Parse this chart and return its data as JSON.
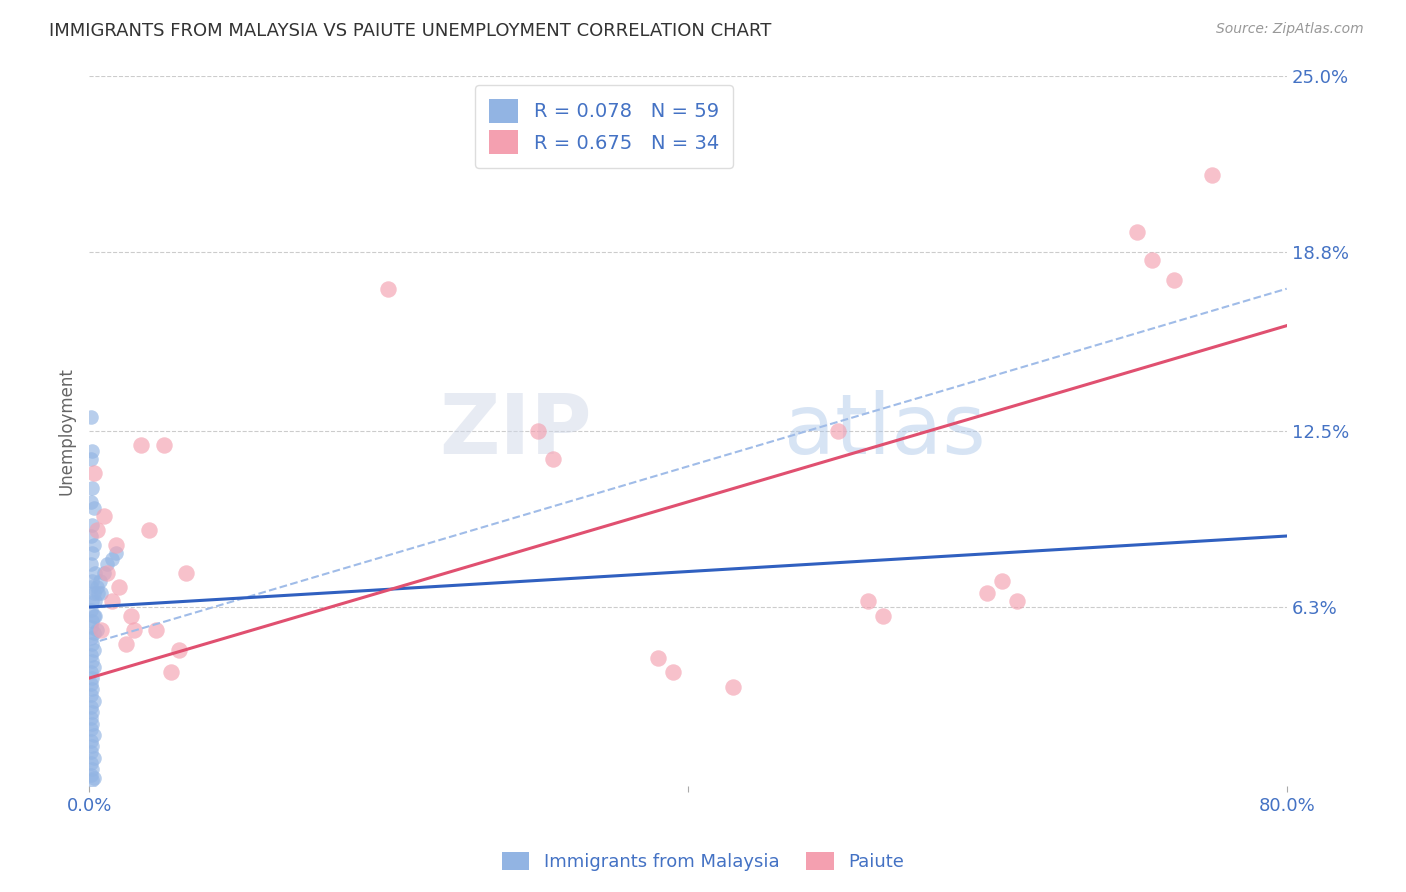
{
  "title": "IMMIGRANTS FROM MALAYSIA VS PAIUTE UNEMPLOYMENT CORRELATION CHART",
  "source": "Source: ZipAtlas.com",
  "xlabel_blue": "Immigrants from Malaysia",
  "xlabel_pink": "Paiute",
  "ylabel": "Unemployment",
  "xlim": [
    0.0,
    0.8
  ],
  "ylim": [
    0.0,
    0.25
  ],
  "y_tick_labels": [
    "6.3%",
    "12.5%",
    "18.8%",
    "25.0%"
  ],
  "y_ticks": [
    0.063,
    0.125,
    0.188,
    0.25
  ],
  "blue_R": 0.078,
  "blue_N": 59,
  "pink_R": 0.675,
  "pink_N": 34,
  "blue_color": "#92b4e3",
  "pink_color": "#f4a0b0",
  "blue_line_color": "#3060c0",
  "pink_line_color": "#e05070",
  "dashed_line_color": "#a0bce8",
  "grid_color": "#cccccc",
  "title_color": "#333333",
  "axis_label_color": "#4472c4",
  "blue_line": {
    "x0": 0.0,
    "y0": 0.063,
    "x1": 0.8,
    "y1": 0.088
  },
  "pink_line": {
    "x0": 0.0,
    "y0": 0.038,
    "x1": 0.8,
    "y1": 0.162
  },
  "dashed_line": {
    "x0": 0.0,
    "y0": 0.05,
    "x1": 0.8,
    "y1": 0.175
  },
  "blue_scatter": [
    [
      0.001,
      0.13
    ],
    [
      0.002,
      0.118
    ],
    [
      0.001,
      0.115
    ],
    [
      0.002,
      0.105
    ],
    [
      0.001,
      0.1
    ],
    [
      0.003,
      0.098
    ],
    [
      0.002,
      0.092
    ],
    [
      0.001,
      0.088
    ],
    [
      0.003,
      0.085
    ],
    [
      0.002,
      0.082
    ],
    [
      0.001,
      0.078
    ],
    [
      0.004,
      0.075
    ],
    [
      0.002,
      0.072
    ],
    [
      0.001,
      0.07
    ],
    [
      0.003,
      0.068
    ],
    [
      0.002,
      0.065
    ],
    [
      0.001,
      0.062
    ],
    [
      0.003,
      0.06
    ],
    [
      0.002,
      0.058
    ],
    [
      0.001,
      0.056
    ],
    [
      0.003,
      0.054
    ],
    [
      0.001,
      0.052
    ],
    [
      0.002,
      0.05
    ],
    [
      0.003,
      0.048
    ],
    [
      0.001,
      0.046
    ],
    [
      0.002,
      0.044
    ],
    [
      0.003,
      0.042
    ],
    [
      0.001,
      0.04
    ],
    [
      0.002,
      0.038
    ],
    [
      0.001,
      0.036
    ],
    [
      0.002,
      0.034
    ],
    [
      0.001,
      0.032
    ],
    [
      0.003,
      0.03
    ],
    [
      0.001,
      0.028
    ],
    [
      0.002,
      0.026
    ],
    [
      0.001,
      0.024
    ],
    [
      0.002,
      0.022
    ],
    [
      0.001,
      0.02
    ],
    [
      0.003,
      0.018
    ],
    [
      0.001,
      0.016
    ],
    [
      0.002,
      0.014
    ],
    [
      0.001,
      0.012
    ],
    [
      0.003,
      0.01
    ],
    [
      0.001,
      0.008
    ],
    [
      0.002,
      0.006
    ],
    [
      0.001,
      0.004
    ],
    [
      0.002,
      0.002
    ],
    [
      0.003,
      0.003
    ],
    [
      0.004,
      0.065
    ],
    [
      0.005,
      0.07
    ],
    [
      0.006,
      0.068
    ],
    [
      0.004,
      0.06
    ],
    [
      0.005,
      0.055
    ],
    [
      0.007,
      0.072
    ],
    [
      0.008,
      0.068
    ],
    [
      0.01,
      0.075
    ],
    [
      0.012,
      0.078
    ],
    [
      0.015,
      0.08
    ],
    [
      0.018,
      0.082
    ]
  ],
  "pink_scatter": [
    [
      0.003,
      0.11
    ],
    [
      0.005,
      0.09
    ],
    [
      0.008,
      0.055
    ],
    [
      0.01,
      0.095
    ],
    [
      0.012,
      0.075
    ],
    [
      0.015,
      0.065
    ],
    [
      0.018,
      0.085
    ],
    [
      0.02,
      0.07
    ],
    [
      0.025,
      0.05
    ],
    [
      0.028,
      0.06
    ],
    [
      0.03,
      0.055
    ],
    [
      0.035,
      0.12
    ],
    [
      0.04,
      0.09
    ],
    [
      0.045,
      0.055
    ],
    [
      0.05,
      0.12
    ],
    [
      0.055,
      0.04
    ],
    [
      0.06,
      0.048
    ],
    [
      0.065,
      0.075
    ],
    [
      0.2,
      0.175
    ],
    [
      0.3,
      0.125
    ],
    [
      0.31,
      0.115
    ],
    [
      0.38,
      0.045
    ],
    [
      0.39,
      0.04
    ],
    [
      0.43,
      0.035
    ],
    [
      0.5,
      0.125
    ],
    [
      0.52,
      0.065
    ],
    [
      0.53,
      0.06
    ],
    [
      0.6,
      0.068
    ],
    [
      0.61,
      0.072
    ],
    [
      0.62,
      0.065
    ],
    [
      0.7,
      0.195
    ],
    [
      0.71,
      0.185
    ],
    [
      0.725,
      0.178
    ],
    [
      0.75,
      0.215
    ]
  ]
}
